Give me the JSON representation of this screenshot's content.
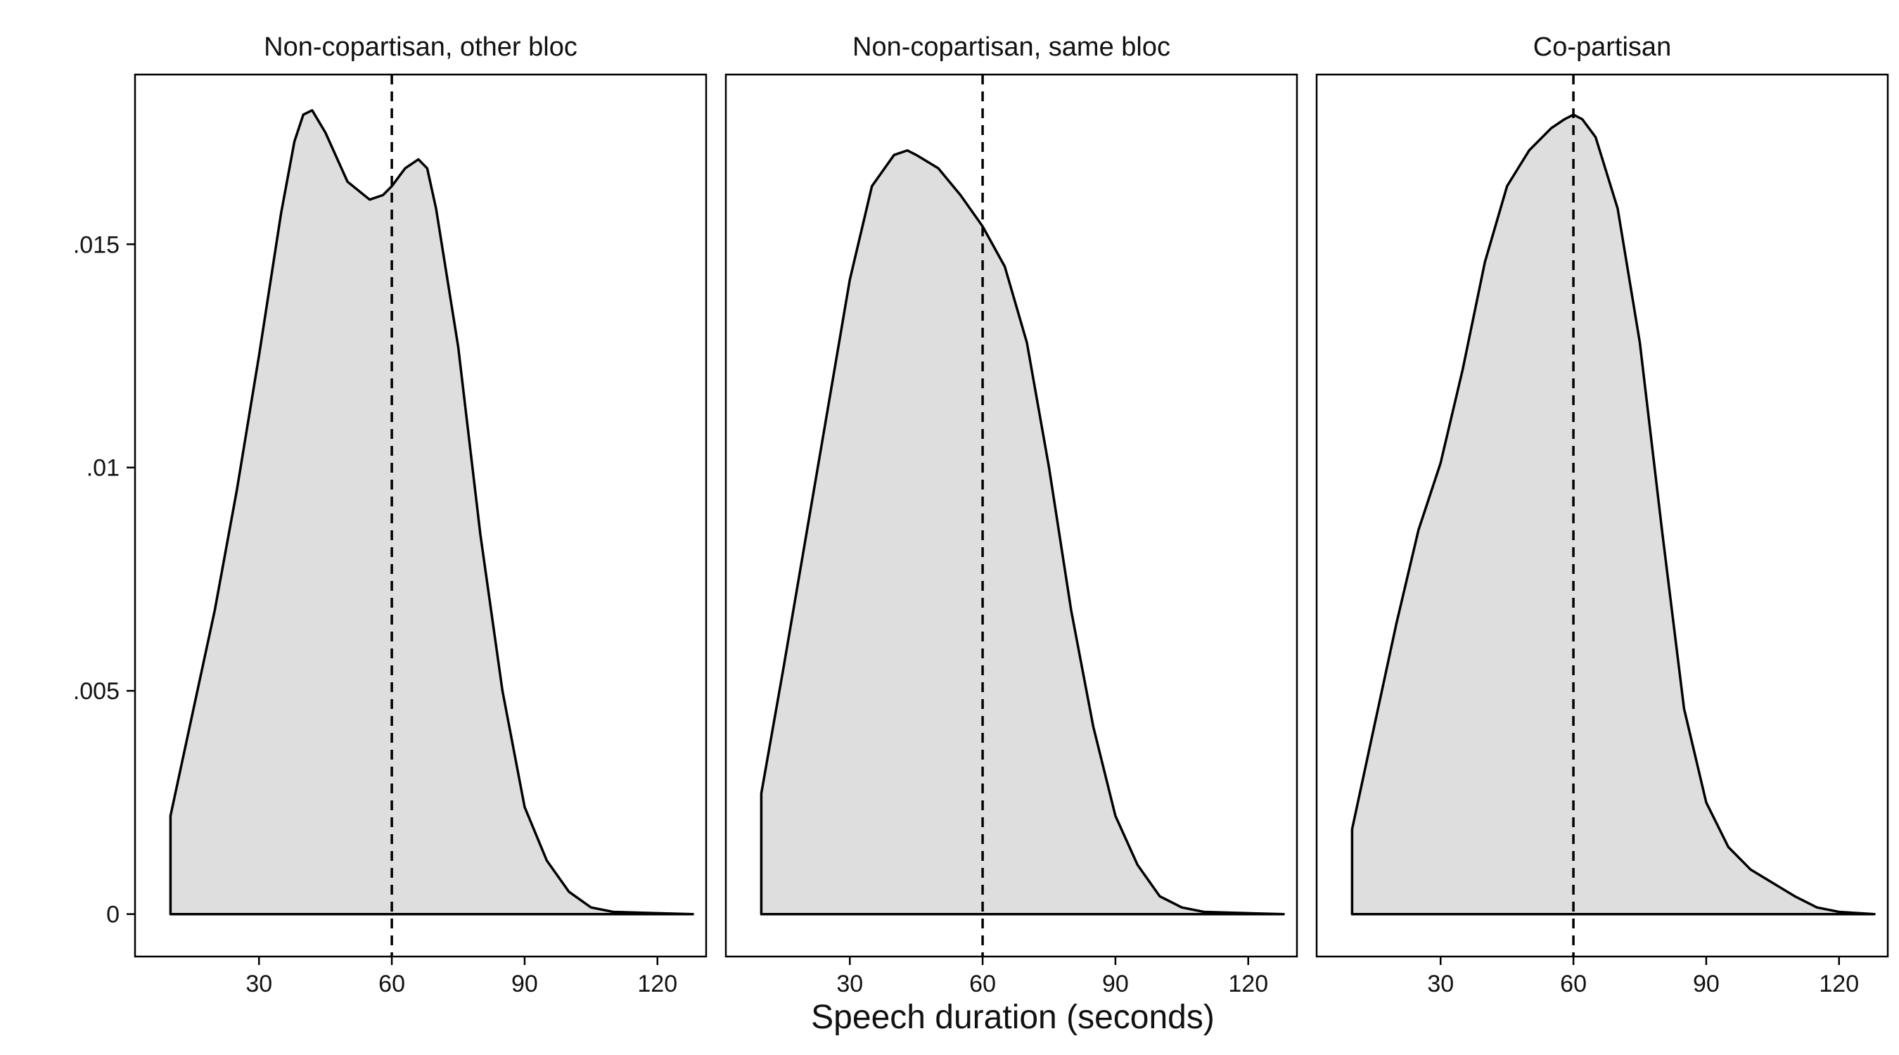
{
  "chart_data": {
    "type": "area",
    "xlabel": "Speech duration (seconds)",
    "ylabel": "",
    "xlim": [
      2,
      131
    ],
    "ylim": [
      -0.00095,
      0.0188
    ],
    "x_ticks": [
      30,
      60,
      90,
      120
    ],
    "x_tick_labels": [
      "30",
      "60",
      "90",
      "120"
    ],
    "y_ticks": [
      0,
      0.005,
      0.01,
      0.015
    ],
    "y_tick_labels": [
      "0",
      ".005",
      ".01",
      ".015"
    ],
    "reference_line": {
      "x": 60,
      "style": "dashed"
    },
    "fill_color": "#dedede",
    "line_color": "#000000",
    "grid": false,
    "panels": [
      {
        "title": "Non-copartisan, other bloc",
        "x": [
          10,
          10,
          15,
          20,
          25,
          30,
          35,
          38,
          40,
          42,
          45,
          50,
          55,
          58,
          60,
          63,
          66,
          68,
          70,
          75,
          80,
          85,
          90,
          95,
          100,
          105,
          110,
          120,
          128
        ],
        "y": [
          0,
          0.0022,
          0.0045,
          0.0068,
          0.0095,
          0.0125,
          0.0157,
          0.0173,
          0.0179,
          0.018,
          0.0175,
          0.0164,
          0.016,
          0.0161,
          0.0163,
          0.0167,
          0.0169,
          0.0167,
          0.0158,
          0.0127,
          0.0085,
          0.005,
          0.0024,
          0.0012,
          0.0005,
          0.00015,
          5e-05,
          2e-05,
          0
        ]
      },
      {
        "title": "Non-copartisan, same bloc",
        "x": [
          10,
          10,
          15,
          20,
          25,
          30,
          35,
          40,
          43,
          45,
          50,
          55,
          60,
          65,
          70,
          75,
          80,
          85,
          90,
          95,
          100,
          105,
          110,
          120,
          128
        ],
        "y": [
          0,
          0.0027,
          0.0055,
          0.0084,
          0.0113,
          0.0142,
          0.0163,
          0.017,
          0.0171,
          0.017,
          0.0167,
          0.0161,
          0.0154,
          0.0145,
          0.0128,
          0.01,
          0.0068,
          0.0042,
          0.0022,
          0.0011,
          0.0004,
          0.00015,
          5e-05,
          2e-05,
          0
        ]
      },
      {
        "title": "Co-partisan",
        "x": [
          10,
          10,
          15,
          20,
          25,
          30,
          35,
          40,
          45,
          50,
          55,
          58,
          60,
          62,
          65,
          70,
          75,
          80,
          85,
          90,
          95,
          100,
          105,
          110,
          115,
          120,
          128
        ],
        "y": [
          0,
          0.0019,
          0.0042,
          0.0065,
          0.0086,
          0.0101,
          0.0122,
          0.0146,
          0.0163,
          0.0171,
          0.0176,
          0.0178,
          0.0179,
          0.0178,
          0.0174,
          0.0158,
          0.0128,
          0.0086,
          0.0046,
          0.0025,
          0.0015,
          0.001,
          0.0007,
          0.0004,
          0.00015,
          5e-05,
          0
        ]
      }
    ]
  }
}
